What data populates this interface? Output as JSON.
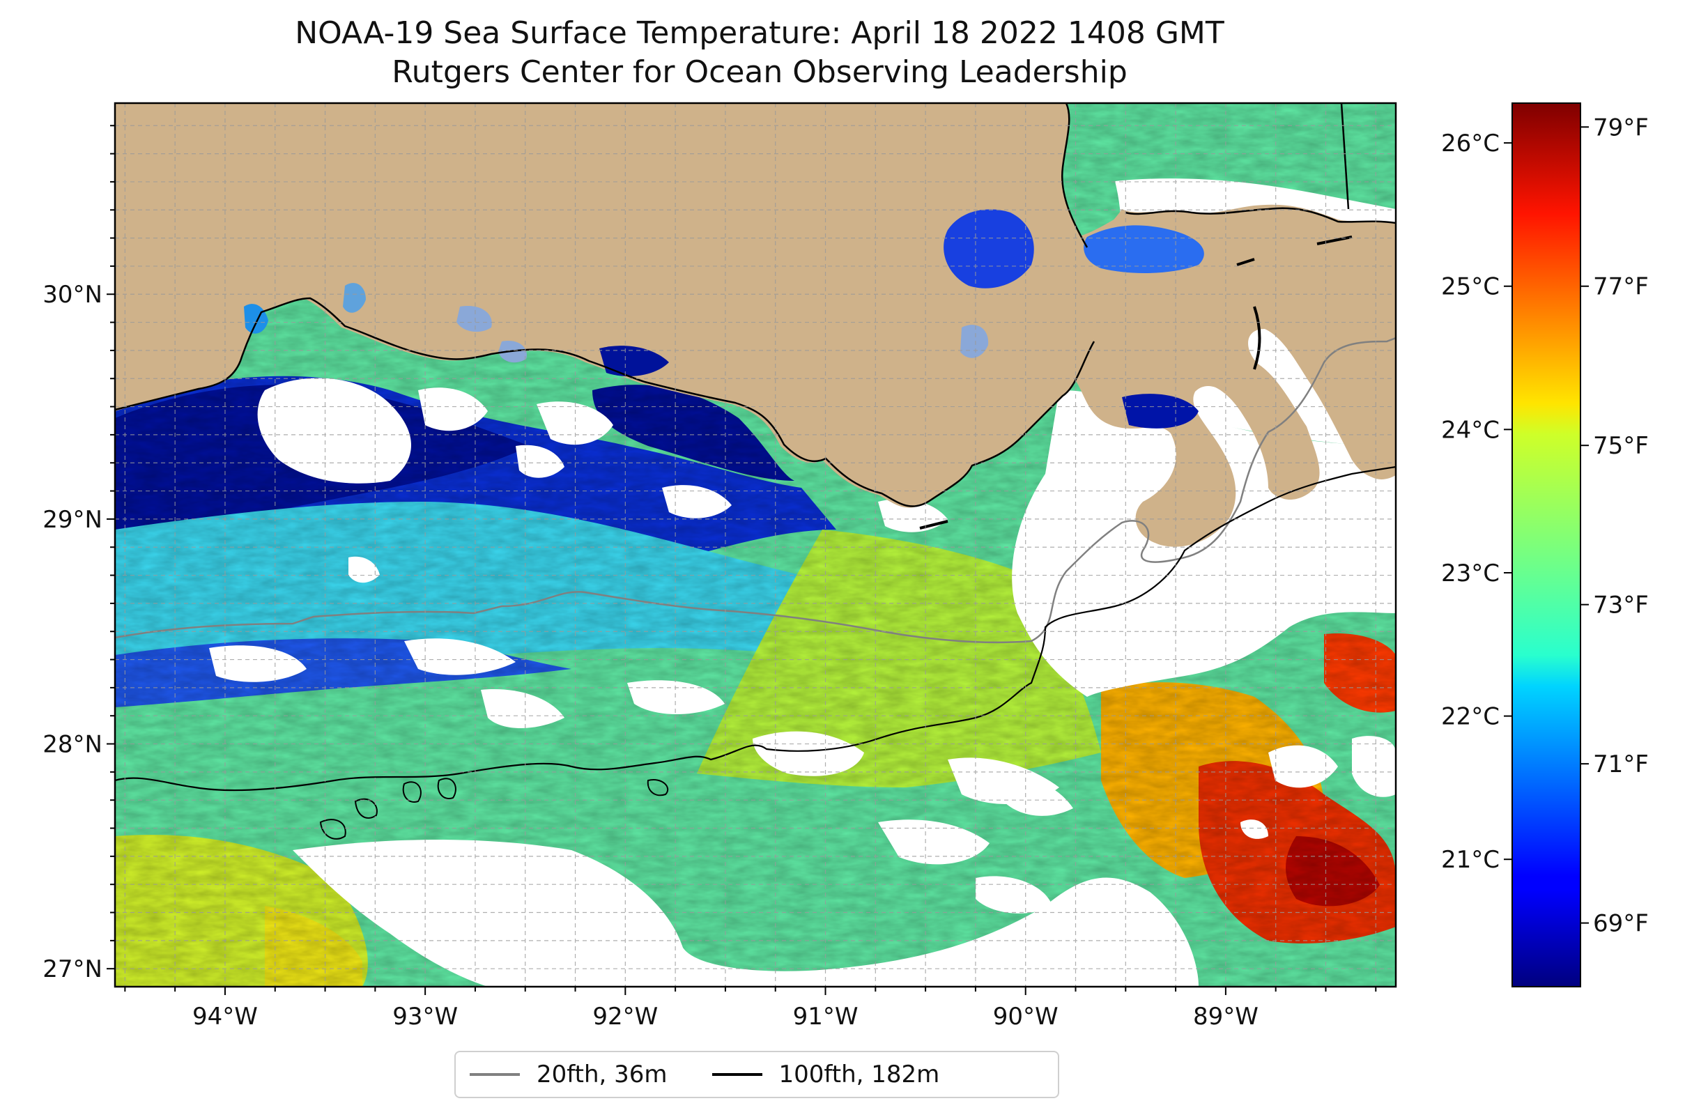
{
  "title": "NOAA-19 Sea Surface Temperature: April 18 2022 1408 GMT",
  "subtitle": "Rutgers Center for Ocean Observing Leadership",
  "map": {
    "extent": {
      "lon_min": -94.55,
      "lon_max": -88.15,
      "lat_min": 26.92,
      "lat_max": 30.85
    },
    "lon_ticks": [
      {
        "value": -94,
        "label": "94°W"
      },
      {
        "value": -93,
        "label": "93°W"
      },
      {
        "value": -92,
        "label": "92°W"
      },
      {
        "value": -91,
        "label": "91°W"
      },
      {
        "value": -90,
        "label": "90°W"
      },
      {
        "value": -89,
        "label": "89°W"
      }
    ],
    "lat_ticks": [
      {
        "value": 30,
        "label": "30°N"
      },
      {
        "value": 29,
        "label": "29°N"
      },
      {
        "value": 28,
        "label": "28°N"
      },
      {
        "value": 27,
        "label": "27°N"
      }
    ],
    "grid": true,
    "land_color": "#cfb28a",
    "no_data_color": "#ffffff",
    "layers": [
      "land",
      "sea-surface-temperature",
      "cloud-mask",
      "coastline",
      "isobath-36m",
      "isobath-182m"
    ]
  },
  "colorbar": {
    "colormap": "jet",
    "celsius_ticks": [
      {
        "value": 26,
        "label": "26°C"
      },
      {
        "value": 25,
        "label": "25°C"
      },
      {
        "value": 24,
        "label": "24°C"
      },
      {
        "value": 23,
        "label": "23°C"
      },
      {
        "value": 22,
        "label": "22°C"
      },
      {
        "value": 21,
        "label": "21°C"
      }
    ],
    "fahrenheit_ticks": [
      {
        "value": 79,
        "label": "79°F"
      },
      {
        "value": 77,
        "label": "77°F"
      },
      {
        "value": 75,
        "label": "75°F"
      },
      {
        "value": 73,
        "label": "73°F"
      },
      {
        "value": 71,
        "label": "71°F"
      },
      {
        "value": 69,
        "label": "69°F"
      }
    ],
    "range_f": [
      68.2,
      79.3
    ]
  },
  "legend": {
    "items": [
      {
        "label": "20fth, 36m",
        "color": "#808080"
      },
      {
        "label": "100fth, 182m",
        "color": "#000000"
      }
    ]
  }
}
